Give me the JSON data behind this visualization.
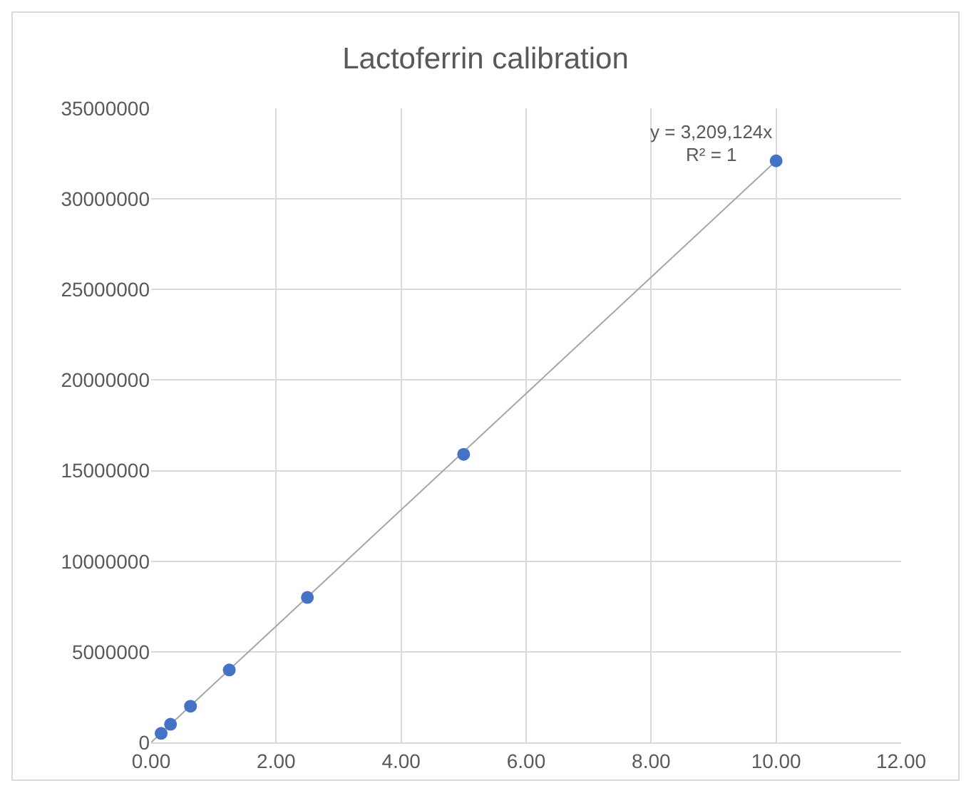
{
  "chart_data": {
    "type": "scatter",
    "title": "Lactoferrin calibration",
    "series": [
      {
        "color": "#4472c4",
        "x": [
          0.16,
          0.31,
          0.63,
          1.25,
          2.5,
          5,
          10
        ],
        "values": [
          500000,
          1000000,
          2000000,
          4000000,
          8000000,
          15900000,
          32100000
        ],
        "marker": "circle"
      },
      {
        "type": "line",
        "color": "#a6a6a6",
        "x": [
          0,
          10
        ],
        "values": [
          0,
          32100000
        ],
        "marker": "none"
      }
    ],
    "xlim": [
      0,
      12
    ],
    "xticks": [
      {
        "value": 0,
        "label": "0.00"
      },
      {
        "value": 2,
        "label": "2.00"
      },
      {
        "value": 4,
        "label": "4.00"
      },
      {
        "value": 6,
        "label": "6.00"
      },
      {
        "value": 8,
        "label": "8.00"
      },
      {
        "value": 10,
        "label": "10.00"
      },
      {
        "value": 12,
        "label": "12.00"
      }
    ],
    "ylim": [
      0,
      35000000
    ],
    "yticks": [
      0,
      5000000,
      10000000,
      15000000,
      20000000,
      25000000,
      30000000,
      35000000
    ],
    "grid": true,
    "annotations": [
      {
        "text": "y = 3,209,124x",
        "x": 10,
        "y": 32100000
      },
      {
        "text": "R² = 1",
        "x": 10,
        "y": 32100000
      }
    ]
  }
}
